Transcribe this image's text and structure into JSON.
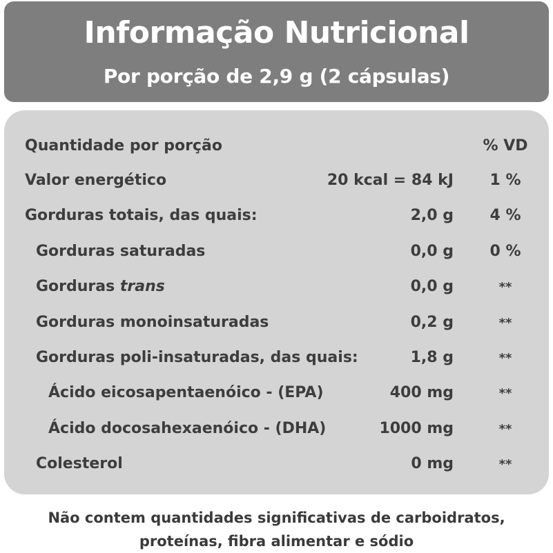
{
  "header": {
    "title": "Informação Nutricional",
    "subtitle": "Por porção de 2,9 g (2 cápsulas)"
  },
  "table": {
    "head_label": "Quantidade por porção",
    "head_vd": "% VD",
    "rows": [
      {
        "name": "Valor energético",
        "amount": "20 kcal = 84 kJ",
        "vd": "1 %"
      },
      {
        "name": "Gorduras totais, das quais:",
        "amount": "2,0 g",
        "vd": "4 %"
      },
      {
        "name": "Gorduras saturadas",
        "amount": "0,0 g",
        "vd": "0 %"
      },
      {
        "name_prefix": "Gorduras ",
        "name_italic": "trans",
        "amount": "0,0 g",
        "vd": "**"
      },
      {
        "name": "Gorduras monoinsaturadas",
        "amount": "0,2 g",
        "vd": "**"
      },
      {
        "name": "Gorduras poli-insaturadas, das quais:",
        "amount": "1,8 g",
        "vd": "**"
      },
      {
        "name": "Ácido eicosapentaenóico - (EPA)",
        "amount": "400 mg",
        "vd": "**"
      },
      {
        "name": "Ácido docosahexaenóico - (DHA)",
        "amount": "1000 mg",
        "vd": "**"
      },
      {
        "name": "Colesterol",
        "amount": "0 mg",
        "vd": "**"
      }
    ]
  },
  "footer": {
    "line1": "Não contem quantidades significativas de carboidratos,",
    "line2": "proteínas, fibra alimentar e sódio"
  }
}
